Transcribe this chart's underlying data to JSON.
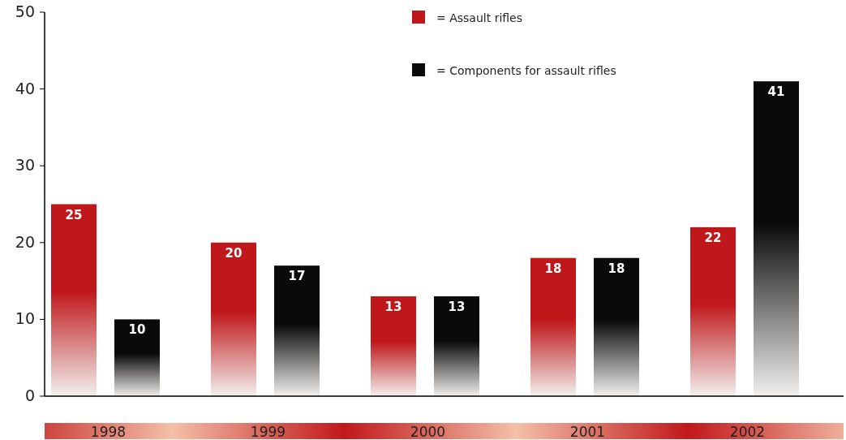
{
  "chart_data": {
    "type": "bar",
    "categories": [
      "1998",
      "1999",
      "2000",
      "2001",
      "2002"
    ],
    "series": [
      {
        "name": "= Assault rifles",
        "color": "#c0171a",
        "values": [
          25,
          20,
          13,
          18,
          22
        ]
      },
      {
        "name": "= Components for assault rifles",
        "color": "#0a0a0a",
        "values": [
          10,
          17,
          13,
          18,
          41
        ]
      }
    ],
    "ylim": [
      0,
      50
    ],
    "yticks": [
      0,
      10,
      20,
      30,
      40,
      50
    ],
    "legend": "top",
    "data_labels": true
  }
}
